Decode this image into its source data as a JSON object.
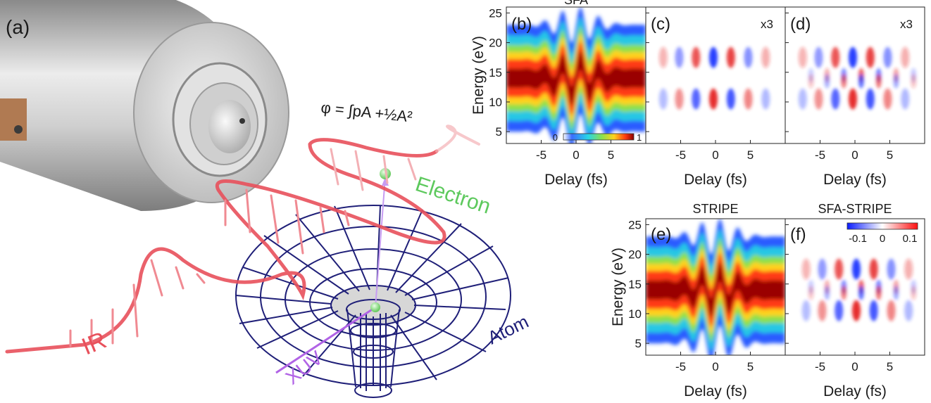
{
  "panel_a": {
    "label": "(a)",
    "phase_formula": "φ = ∫pA +½A²",
    "label_electron": "Electron",
    "label_ir": "IR",
    "label_xuv": "XUV",
    "label_atom": "Atom",
    "colors": {
      "ir": "#e8505b",
      "electron": "#5dc95d",
      "xuv": "#b163e6",
      "atom": "#1f1f78"
    },
    "icons": [
      "gas-nozzle-icon",
      "ir-wave-icon",
      "potential-well-icon"
    ]
  },
  "panels": {
    "b": {
      "label": "(b)",
      "title": "SFA"
    },
    "c": {
      "label": "(c)",
      "title": "",
      "scale_note": "x3"
    },
    "d": {
      "label": "(d)",
      "title": "",
      "scale_note": "x3"
    },
    "e": {
      "label": "(e)",
      "title": "STRIPE"
    },
    "f": {
      "label": "(f)",
      "title": "SFA-STRIPE"
    }
  },
  "axes": {
    "ylabel": "Energy (eV)",
    "xlabel": "Delay (fs)",
    "xticks": [
      "-5",
      "0",
      "5"
    ],
    "yticks": [
      "5",
      "10",
      "15",
      "20",
      "25"
    ]
  },
  "colorbar_jet": {
    "min_label": "0",
    "max_label": "1"
  },
  "colorbar_diff": {
    "labels": [
      "-0.1",
      "0",
      "0.1"
    ]
  },
  "chart_data": [
    {
      "panel": "b",
      "type": "heatmap",
      "title": "SFA",
      "xlabel": "Delay (fs)",
      "ylabel": "Energy (eV)",
      "xlim": [
        -10,
        10
      ],
      "ylim": [
        3,
        26
      ],
      "center_energy": 14,
      "colorbar": [
        0,
        1
      ]
    },
    {
      "panel": "c",
      "type": "heatmap",
      "xlabel": "Delay (fs)",
      "xlim": [
        -10,
        10
      ],
      "ylim": [
        3,
        26
      ],
      "colorbar": [
        -0.1,
        0.1
      ],
      "note": "x3"
    },
    {
      "panel": "d",
      "type": "heatmap",
      "xlabel": "Delay (fs)",
      "xlim": [
        -10,
        10
      ],
      "ylim": [
        3,
        26
      ],
      "colorbar": [
        -0.1,
        0.1
      ],
      "note": "x3"
    },
    {
      "panel": "e",
      "type": "heatmap",
      "title": "STRIPE",
      "xlabel": "Delay (fs)",
      "ylabel": "Energy (eV)",
      "xlim": [
        -10,
        10
      ],
      "ylim": [
        3,
        26
      ],
      "center_energy": 14,
      "colorbar": [
        0,
        1
      ]
    },
    {
      "panel": "f",
      "type": "heatmap",
      "title": "SFA-STRIPE",
      "xlabel": "Delay (fs)",
      "xlim": [
        -10,
        10
      ],
      "ylim": [
        3,
        26
      ],
      "colorbar": [
        -0.1,
        0.1
      ]
    }
  ]
}
